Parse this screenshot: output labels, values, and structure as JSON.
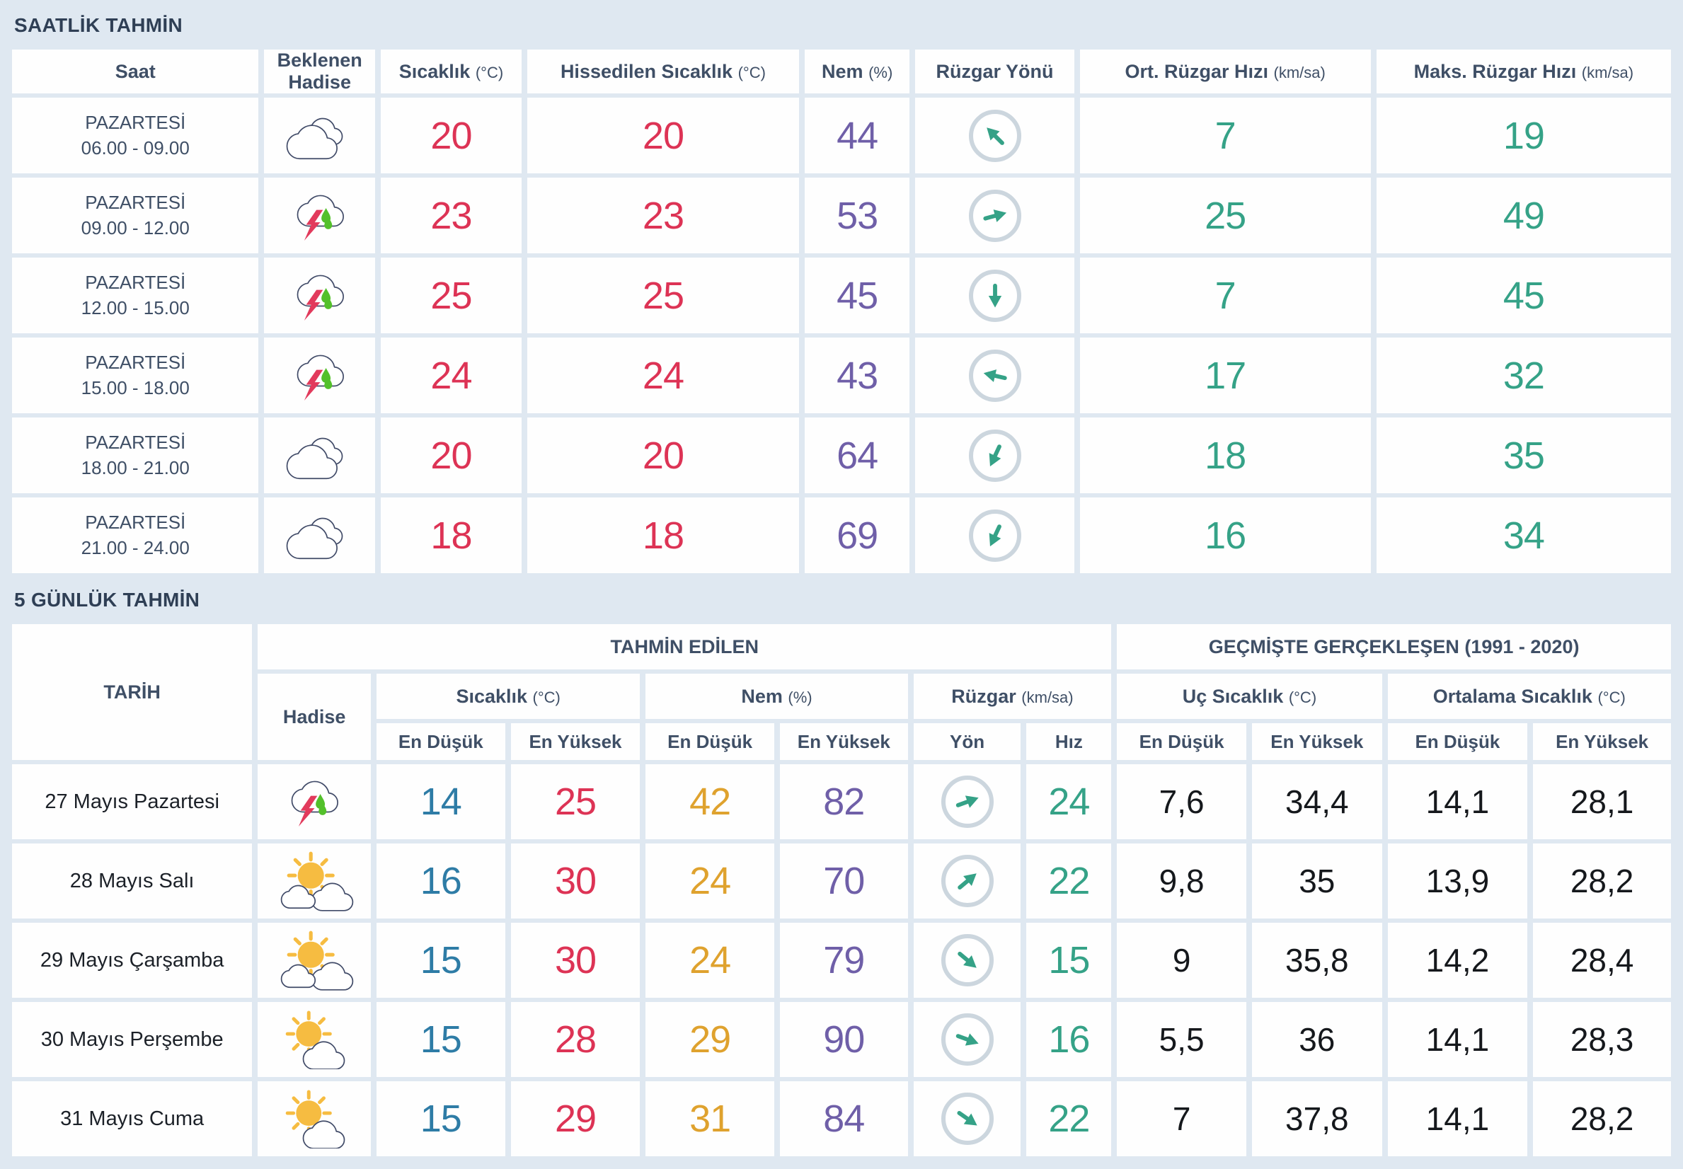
{
  "colors": {
    "background": "#dfe8f1",
    "cell_bg": "#fefefe",
    "title_text": "#2f3f55",
    "header_text": "#3f4f66",
    "date_text": "#1c2128",
    "historical_text": "#15181c",
    "temp_red": "#dd3355",
    "humidity_purple": "#6f5fa8",
    "wind_teal": "#35a287",
    "min_blue": "#2e7ca6",
    "hum_min_orange": "#dfa22e",
    "circle_border": "#ccd6de",
    "cloud_outline": "#414b68",
    "lightning_red": "#e23a5c",
    "rain_green": "#53c02b",
    "sun_yellow": "#f6bc41"
  },
  "icons": {
    "cloudy": "two-clouds-icon",
    "thunderstorm": "cloud-lightning-rain-icon",
    "mostly-sunny": "sun-behind-two-clouds-icon",
    "partly-sunny": "sun-behind-cloud-icon",
    "wind": "arrow-in-circle-icon"
  },
  "hourly": {
    "title": "SAATLİK TAHMİN",
    "columns": [
      {
        "label": "Saat",
        "unit": ""
      },
      {
        "label": "Beklenen Hadise",
        "unit": ""
      },
      {
        "label": "Sıcaklık",
        "unit": "(°C)"
      },
      {
        "label": "Hissedilen Sıcaklık",
        "unit": "(°C)"
      },
      {
        "label": "Nem",
        "unit": "(%)"
      },
      {
        "label": "Rüzgar Yönü",
        "unit": ""
      },
      {
        "label": "Ort. Rüzgar Hızı",
        "unit": "(km/sa)"
      },
      {
        "label": "Maks. Rüzgar Hızı",
        "unit": "(km/sa)"
      }
    ],
    "rows": [
      {
        "day": "PAZARTESİ",
        "time": "06.00 - 09.00",
        "icon": "cloudy",
        "temp": "20",
        "feels": "20",
        "humidity": "44",
        "wind_dir": "NW",
        "wind_deg": 225,
        "wind_avg": "7",
        "wind_max": "19"
      },
      {
        "day": "PAZARTESİ",
        "time": "09.00 - 12.00",
        "icon": "thunderstorm",
        "temp": "23",
        "feels": "23",
        "humidity": "53",
        "wind_dir": "ENE",
        "wind_deg": 345,
        "wind_avg": "25",
        "wind_max": "49"
      },
      {
        "day": "PAZARTESİ",
        "time": "12.00 - 15.00",
        "icon": "thunderstorm",
        "temp": "25",
        "feels": "25",
        "humidity": "45",
        "wind_dir": "S",
        "wind_deg": 90,
        "wind_avg": "7",
        "wind_max": "45"
      },
      {
        "day": "PAZARTESİ",
        "time": "15.00 - 18.00",
        "icon": "thunderstorm",
        "temp": "24",
        "feels": "24",
        "humidity": "43",
        "wind_dir": "W",
        "wind_deg": 193,
        "wind_avg": "17",
        "wind_max": "32"
      },
      {
        "day": "PAZARTESİ",
        "time": "18.00 - 21.00",
        "icon": "cloudy",
        "temp": "20",
        "feels": "20",
        "humidity": "64",
        "wind_dir": "SSW",
        "wind_deg": 115,
        "wind_avg": "18",
        "wind_max": "35"
      },
      {
        "day": "PAZARTESİ",
        "time": "21.00 - 24.00",
        "icon": "cloudy",
        "temp": "18",
        "feels": "18",
        "humidity": "69",
        "wind_dir": "SSW",
        "wind_deg": 115,
        "wind_avg": "16",
        "wind_max": "34"
      }
    ]
  },
  "daily": {
    "title": "5 GÜNLÜK TAHMİN",
    "group_headers": {
      "date": "TARİH",
      "predicted": "TAHMİN EDİLEN",
      "historical": "GEÇMİŞTE GERÇEKLEŞEN (1991 - 2020)"
    },
    "sub_headers": {
      "event": "Hadise",
      "temp": {
        "label": "Sıcaklık",
        "unit": "(°C)"
      },
      "humidity": {
        "label": "Nem",
        "unit": "(%)"
      },
      "wind": {
        "label": "Rüzgar",
        "unit": "(km/sa)"
      },
      "extreme_temp": {
        "label": "Uç Sıcaklık",
        "unit": "(°C)"
      },
      "avg_temp": {
        "label": "Ortalama Sıcaklık",
        "unit": "(°C)"
      }
    },
    "minmax": {
      "min": "En Düşük",
      "max": "En Yüksek",
      "dir": "Yön",
      "speed": "Hız"
    },
    "rows": [
      {
        "date": "27 Mayıs Pazartesi",
        "icon": "thunderstorm",
        "temp_min": "14",
        "temp_max": "25",
        "hum_min": "42",
        "hum_max": "82",
        "wind_dir": "ENE",
        "wind_deg": 340,
        "wind_speed": "24",
        "ext_min": "7,6",
        "ext_max": "34,4",
        "avg_min": "14,1",
        "avg_max": "28,1"
      },
      {
        "date": "28 Mayıs Salı",
        "icon": "mostly-sunny",
        "temp_min": "16",
        "temp_max": "30",
        "hum_min": "24",
        "hum_max": "70",
        "wind_dir": "NE",
        "wind_deg": 320,
        "wind_speed": "22",
        "ext_min": "9,8",
        "ext_max": "35",
        "avg_min": "13,9",
        "avg_max": "28,2"
      },
      {
        "date": "29 Mayıs Çarşamba",
        "icon": "mostly-sunny",
        "temp_min": "15",
        "temp_max": "30",
        "hum_min": "24",
        "hum_max": "79",
        "wind_dir": "SE",
        "wind_deg": 40,
        "wind_speed": "15",
        "ext_min": "9",
        "ext_max": "35,8",
        "avg_min": "14,2",
        "avg_max": "28,4"
      },
      {
        "date": "30 Mayıs Perşembe",
        "icon": "partly-sunny",
        "temp_min": "15",
        "temp_max": "28",
        "hum_min": "29",
        "hum_max": "90",
        "wind_dir": "ESE",
        "wind_deg": 20,
        "wind_speed": "16",
        "ext_min": "5,5",
        "ext_max": "36",
        "avg_min": "14,1",
        "avg_max": "28,3"
      },
      {
        "date": "31 Mayıs Cuma",
        "icon": "partly-sunny",
        "temp_min": "15",
        "temp_max": "29",
        "hum_min": "31",
        "hum_max": "84",
        "wind_dir": "SE",
        "wind_deg": 35,
        "wind_speed": "22",
        "ext_min": "7",
        "ext_max": "37,8",
        "avg_min": "14,1",
        "avg_max": "28,2"
      }
    ]
  }
}
